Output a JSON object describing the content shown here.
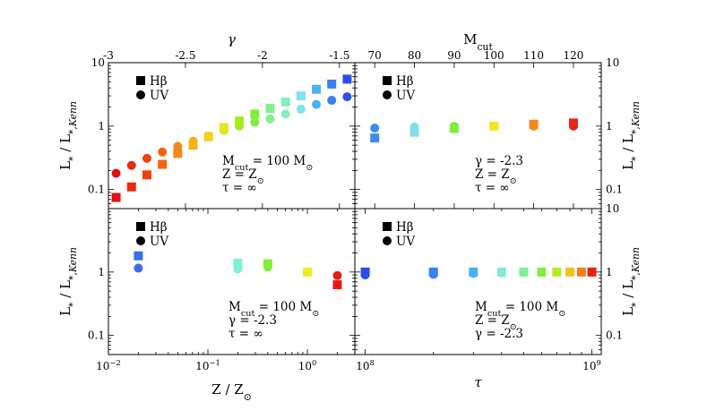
{
  "chart_data": [
    {
      "id": "tl",
      "type": "scatter",
      "title": "",
      "top_xlabel": "γ",
      "top_ticks": [
        "-3",
        "-2.5",
        "-2",
        "-1.5"
      ],
      "top_range": [
        -3.0,
        -1.4
      ],
      "xscale": "linear",
      "ylabel": "L* / L*,Kenn",
      "yscale": "log",
      "ylim": [
        0.05,
        10
      ],
      "yticks": [
        "0.1",
        "1",
        "10"
      ],
      "legend": {
        "position": "top-left",
        "entries": [
          "Hβ",
          "UV"
        ]
      },
      "annotation": [
        "Mcut = 100 M⊙",
        "Z = Z⊙",
        "τ = ∞"
      ],
      "series": [
        {
          "name": "Hβ",
          "marker": "square",
          "x": [
            -2.95,
            -2.85,
            -2.75,
            -2.65,
            -2.55,
            -2.45,
            -2.35,
            -2.25,
            -2.15,
            -2.05,
            -1.95,
            -1.85,
            -1.75,
            -1.65,
            -1.55,
            -1.45
          ],
          "y": [
            0.075,
            0.11,
            0.17,
            0.25,
            0.37,
            0.5,
            0.68,
            0.95,
            1.2,
            1.55,
            1.9,
            2.4,
            3.0,
            3.8,
            4.6,
            5.5
          ]
        },
        {
          "name": "UV",
          "marker": "circle",
          "x": [
            -2.95,
            -2.85,
            -2.75,
            -2.65,
            -2.55,
            -2.45,
            -2.35,
            -2.25,
            -2.15,
            -2.05,
            -1.95,
            -1.85,
            -1.75,
            -1.65,
            -1.55,
            -1.45
          ],
          "y": [
            0.18,
            0.24,
            0.31,
            0.39,
            0.48,
            0.58,
            0.7,
            0.85,
            1.0,
            1.15,
            1.3,
            1.55,
            1.85,
            2.2,
            2.55,
            2.9
          ]
        }
      ]
    },
    {
      "id": "tr",
      "type": "scatter",
      "title": "",
      "top_xlabel": "Mcut",
      "top_ticks": [
        "70",
        "80",
        "90",
        "100",
        "110",
        "120"
      ],
      "top_range": [
        65,
        127
      ],
      "xscale": "linear",
      "ylabel": "L* / L*,Kenn",
      "yscale": "log",
      "ylim": [
        0.05,
        10
      ],
      "yticks": [
        "0.1",
        "1",
        "10"
      ],
      "legend": {
        "position": "top-left",
        "entries": [
          "Hβ",
          "UV"
        ]
      },
      "annotation": [
        "γ = -2.3",
        "Z = Z⊙",
        "τ = ∞"
      ],
      "series": [
        {
          "name": "Hβ",
          "marker": "square",
          "x": [
            70,
            80,
            90,
            100,
            110,
            120
          ],
          "y": [
            0.65,
            0.8,
            0.92,
            1.0,
            1.07,
            1.12
          ]
        },
        {
          "name": "UV",
          "marker": "circle",
          "x": [
            70,
            80,
            90,
            100,
            110,
            120
          ],
          "y": [
            0.93,
            0.97,
            0.99,
            1.0,
            1.0,
            1.0
          ]
        }
      ]
    },
    {
      "id": "bl",
      "type": "scatter",
      "title": "",
      "xlabel": "Z / Z⊙",
      "xscale": "log",
      "xlim": [
        0.01,
        3
      ],
      "xticks": [
        {
          "v": 0.01,
          "base": "10",
          "exp": "−2"
        },
        {
          "v": 0.1,
          "base": "10",
          "exp": "−1"
        },
        {
          "v": 1,
          "base": "10",
          "exp": "0"
        }
      ],
      "ylabel": "L* / L*,Kenn",
      "yscale": "log",
      "ylim": [
        0.05,
        10
      ],
      "yticks": [
        "0.1",
        "1"
      ],
      "legend": {
        "position": "top-left",
        "entries": [
          "Hβ",
          "UV"
        ]
      },
      "annotation": [
        "Mcut = 100 M⊙",
        "γ = -2.3",
        "τ = ∞"
      ],
      "series": [
        {
          "name": "Hβ",
          "marker": "square",
          "x": [
            0.02,
            0.2,
            0.4,
            1.0,
            2.0
          ],
          "y": [
            1.8,
            1.38,
            1.35,
            1.0,
            0.63
          ]
        },
        {
          "name": "UV",
          "marker": "circle",
          "x": [
            0.02,
            0.2,
            0.4,
            1.0,
            2.0
          ],
          "y": [
            1.15,
            1.12,
            1.2,
            1.0,
            0.88
          ]
        }
      ]
    },
    {
      "id": "br",
      "type": "scatter",
      "title": "",
      "xlabel": "τ",
      "xscale": "log",
      "xlim": [
        90000000,
        1100000000
      ],
      "xticks": [
        {
          "v": 100000000,
          "base": "10",
          "exp": "8"
        },
        {
          "v": 1000000000,
          "base": "10",
          "exp": "9"
        }
      ],
      "ylabel": "L* / L*,Kenn",
      "yscale": "log",
      "ylim": [
        0.05,
        10
      ],
      "yticks": [
        "0.1",
        "1",
        "10"
      ],
      "legend": {
        "position": "top-left",
        "entries": [
          "Hβ",
          "UV"
        ]
      },
      "annotation": [
        "Mcut = 100 M⊙",
        "Z = Z⊙",
        "γ = -2.3"
      ],
      "series": [
        {
          "name": "Hβ",
          "marker": "square",
          "x": [
            100000000,
            200000000,
            300000000,
            400000000,
            500000000,
            600000000,
            700000000,
            800000000,
            900000000,
            1000000000
          ],
          "y": [
            1.0,
            1.0,
            1.0,
            1.0,
            1.0,
            1.0,
            1.0,
            1.0,
            1.0,
            1.0
          ]
        },
        {
          "name": "UV",
          "marker": "circle",
          "x": [
            100000000,
            200000000,
            300000000,
            400000000,
            500000000,
            600000000,
            700000000,
            800000000,
            900000000,
            1000000000
          ],
          "y": [
            0.9,
            0.92,
            0.95,
            0.97,
            0.98,
            0.99,
            1.0,
            1.0,
            1.0,
            1.0
          ]
        }
      ]
    }
  ],
  "colors": {
    "tl": [
      "#e01010",
      "#e92a0e",
      "#ee4010",
      "#f26414",
      "#f5891a",
      "#f8b01e",
      "#f5d21c",
      "#e2e71e",
      "#a2ec1f",
      "#7fee3c",
      "#7ff08c",
      "#80f0c0",
      "#7fe2f2",
      "#4ab2f2",
      "#3b7ef0",
      "#2f4ee8"
    ],
    "tr": [
      "#3f8cf0",
      "#7fe0e8",
      "#7fee3c",
      "#f0ea1a",
      "#f58818",
      "#e82614"
    ],
    "bl": [
      "#3a6cf0",
      "#7ff2d2",
      "#86ee3a",
      "#ecee1c",
      "#e61c14"
    ],
    "br": [
      "#2e4ce8",
      "#3b82f0",
      "#45b0f2",
      "#7fecd8",
      "#7fef9a",
      "#84ee44",
      "#b8ec1e",
      "#f4c21e",
      "#f58018",
      "#e82014"
    ]
  }
}
